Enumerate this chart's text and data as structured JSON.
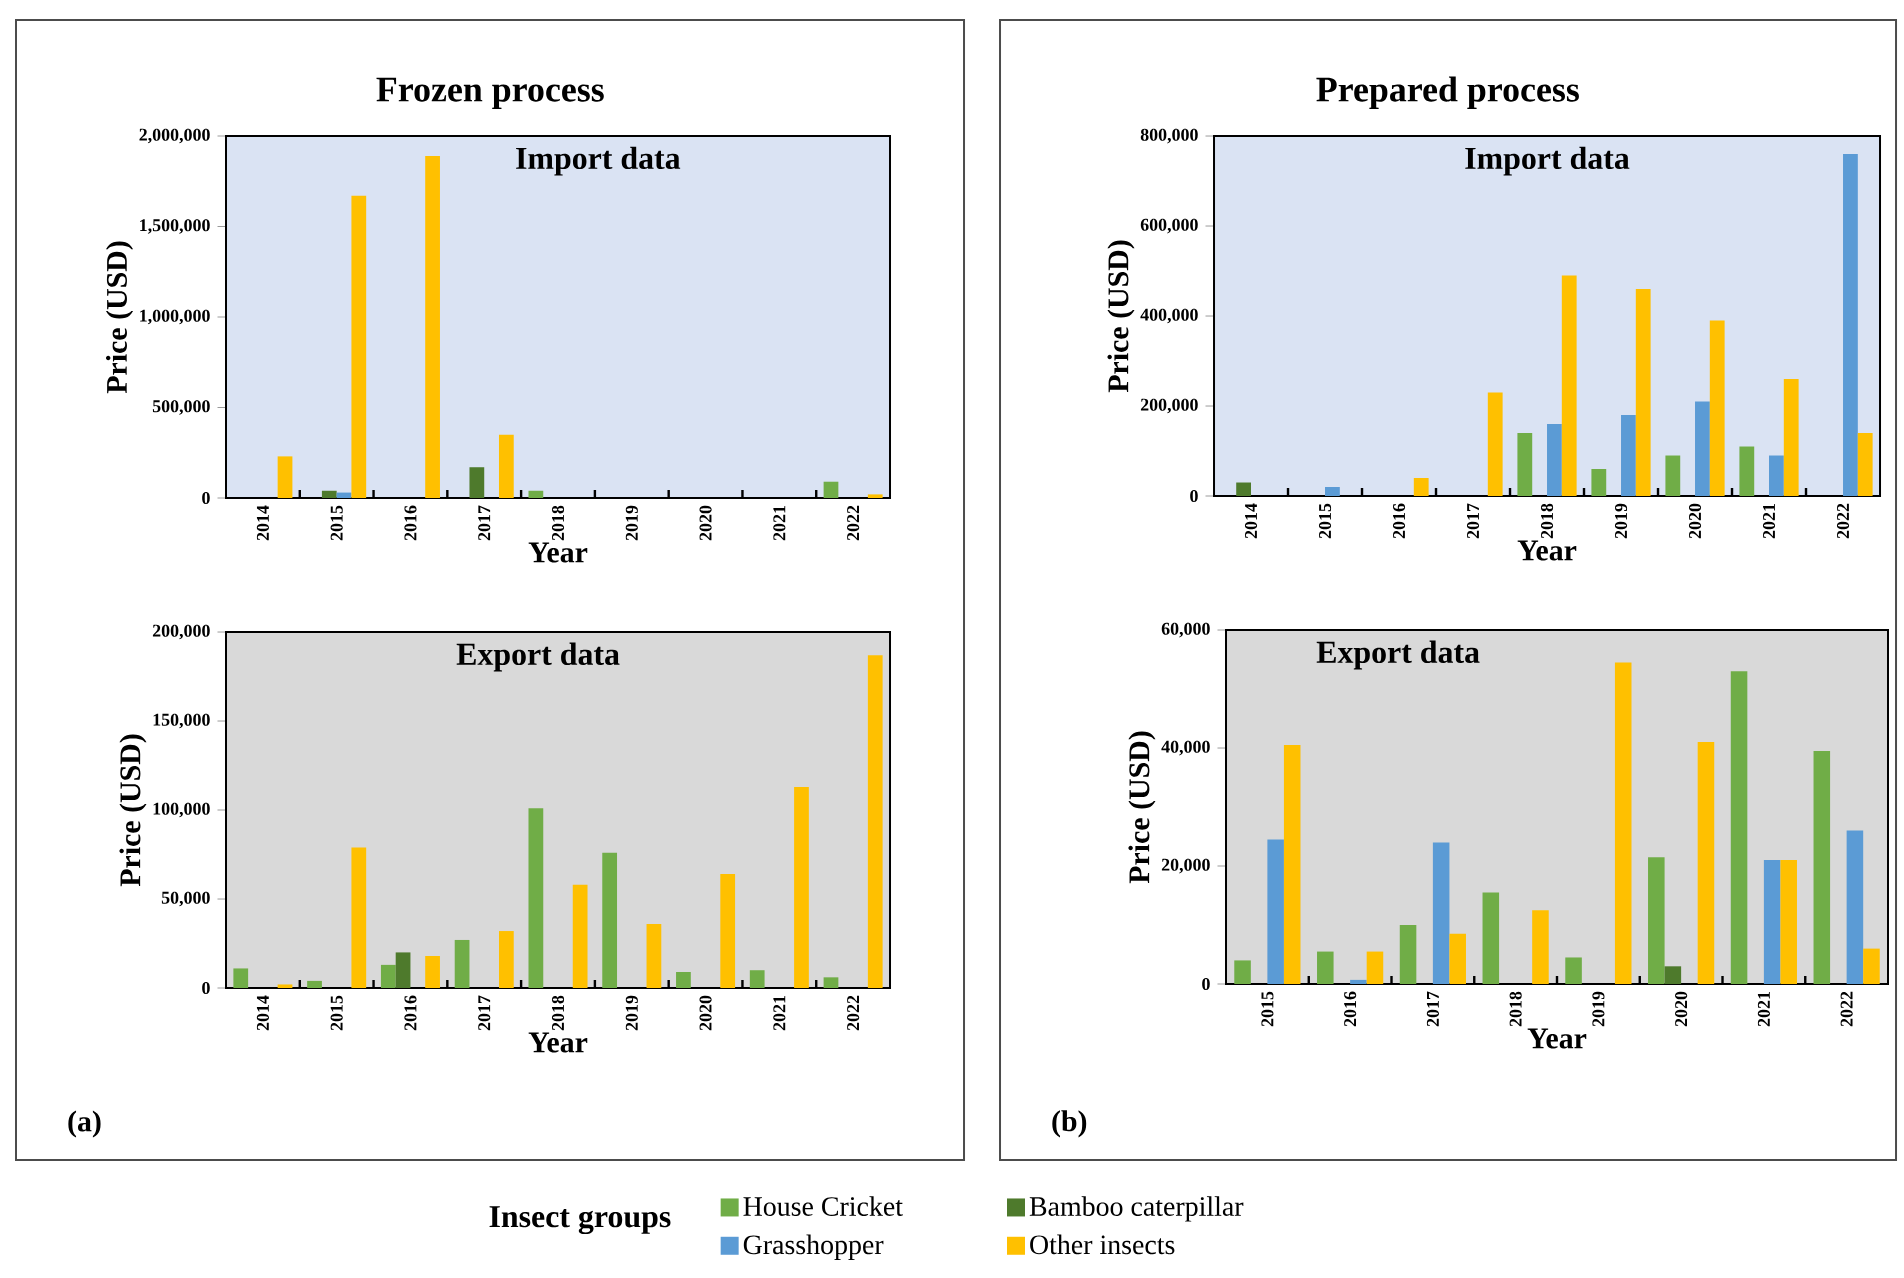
{
  "chart_data": [
    {
      "type": "bar",
      "title": "Frozen process",
      "subtitle": "Import data",
      "xlabel": "Year",
      "ylabel": "Price (USD)",
      "categories": [
        "2014",
        "2015",
        "2016",
        "2017",
        "2018",
        "2019",
        "2020",
        "2021",
        "2022"
      ],
      "ylim": [
        0,
        2000000
      ],
      "yticks": [
        0,
        {
          "value": 500000,
          "label": "500,000"
        },
        {
          "value": 1000000,
          "label": "1,000,000"
        },
        {
          "value": 1500000,
          "label": "1,500,000"
        },
        {
          "value": 2000000,
          "label": "2,000,000"
        }
      ],
      "series": [
        {
          "color": "#70ad47",
          "values": [
            null,
            null,
            null,
            null,
            40000,
            null,
            null,
            null,
            90000
          ]
        },
        {
          "color": "#4e7a2c",
          "values": [
            null,
            40000,
            null,
            170000,
            null,
            null,
            null,
            null,
            null
          ]
        },
        {
          "color": "#5b9bd5",
          "values": [
            null,
            30000,
            null,
            null,
            null,
            null,
            null,
            null,
            null
          ]
        },
        {
          "color": "#ffc000",
          "values": [
            230000,
            1670000,
            1890000,
            350000,
            null,
            null,
            null,
            null,
            20000
          ]
        }
      ]
    },
    {
      "type": "bar",
      "title": "Prepared process",
      "subtitle": "Import data",
      "xlabel": "Year",
      "ylabel": "Price (USD)",
      "categories": [
        "2014",
        "2015",
        "2016",
        "2017",
        "2018",
        "2019",
        "2020",
        "2021",
        "2022"
      ],
      "ylim": [
        0,
        800000
      ],
      "yticks": [
        0,
        {
          "value": 200000,
          "label": "200,000"
        },
        {
          "value": 400000,
          "label": "400,000"
        },
        {
          "value": 600000,
          "label": "600,000"
        },
        {
          "value": 800000,
          "label": "800,000"
        }
      ],
      "series": [
        {
          "color": "#70ad47",
          "values": [
            null,
            null,
            null,
            null,
            140000,
            60000,
            90000,
            110000,
            null
          ]
        },
        {
          "color": "#4e7a2c",
          "values": [
            30000,
            null,
            null,
            null,
            null,
            null,
            null,
            null,
            null
          ]
        },
        {
          "color": "#5b9bd5",
          "values": [
            null,
            20000,
            null,
            null,
            160000,
            180000,
            210000,
            90000,
            760000
          ]
        },
        {
          "color": "#ffc000",
          "values": [
            null,
            null,
            40000,
            230000,
            490000,
            460000,
            390000,
            260000,
            140000
          ]
        }
      ]
    },
    {
      "type": "bar",
      "title": "Export data",
      "xlabel": "Year",
      "ylabel": "Price (USD)",
      "annotations": [
        "(a)"
      ],
      "categories": [
        "2014",
        "2015",
        "2016",
        "2017",
        "2018",
        "2019",
        "2020",
        "2021",
        "2022"
      ],
      "ylim": [
        0,
        200000
      ],
      "yticks": [
        0,
        {
          "value": 50000,
          "label": "50,000"
        },
        {
          "value": 100000,
          "label": "100,000"
        },
        {
          "value": 150000,
          "label": "150,000"
        },
        {
          "value": 200000,
          "label": "200,000"
        }
      ],
      "series": [
        {
          "color": "#70ad47",
          "values": [
            11000,
            4000,
            13000,
            27000,
            101000,
            76000,
            9000,
            10000,
            6000
          ]
        },
        {
          "color": "#4e7a2c",
          "values": [
            null,
            null,
            20000,
            null,
            null,
            null,
            null,
            null,
            null
          ]
        },
        {
          "color": "#5b9bd5",
          "values": [
            null,
            null,
            null,
            null,
            null,
            null,
            null,
            null,
            null
          ]
        },
        {
          "color": "#ffc000",
          "values": [
            2000,
            79000,
            18000,
            32000,
            58000,
            36000,
            64000,
            113000,
            187000
          ]
        }
      ]
    },
    {
      "type": "bar",
      "title": "Export data",
      "xlabel": "Year",
      "ylabel": "Price (USD)",
      "annotations": [
        "(b)"
      ],
      "legend": "bottom",
      "legend_title": "Insect groups",
      "categories": [
        "2015",
        "2016",
        "2017",
        "2018",
        "2019",
        "2020",
        "2021",
        "2022"
      ],
      "ylim": [
        0,
        60000
      ],
      "yticks": [
        0,
        {
          "value": 20000,
          "label": "20,000"
        },
        {
          "value": 40000,
          "label": "40,000"
        },
        {
          "value": 60000,
          "label": "60,000"
        }
      ],
      "series": [
        {
          "name": "House Cricket",
          "color": "#70ad47",
          "values": [
            4000,
            5500,
            10000,
            15500,
            4500,
            21500,
            53000,
            39500
          ]
        },
        {
          "name": "Bamboo caterpillar",
          "color": "#4e7a2c",
          "values": [
            null,
            null,
            null,
            null,
            null,
            3000,
            null,
            null
          ]
        },
        {
          "name": "Grasshopper",
          "color": "#5b9bd5",
          "values": [
            24500,
            700,
            24000,
            null,
            null,
            null,
            21000,
            26000
          ]
        },
        {
          "name": "Other insects",
          "color": "#ffc000",
          "values": [
            40500,
            5500,
            8500,
            12500,
            54500,
            41000,
            21000,
            6000
          ]
        }
      ]
    }
  ]
}
